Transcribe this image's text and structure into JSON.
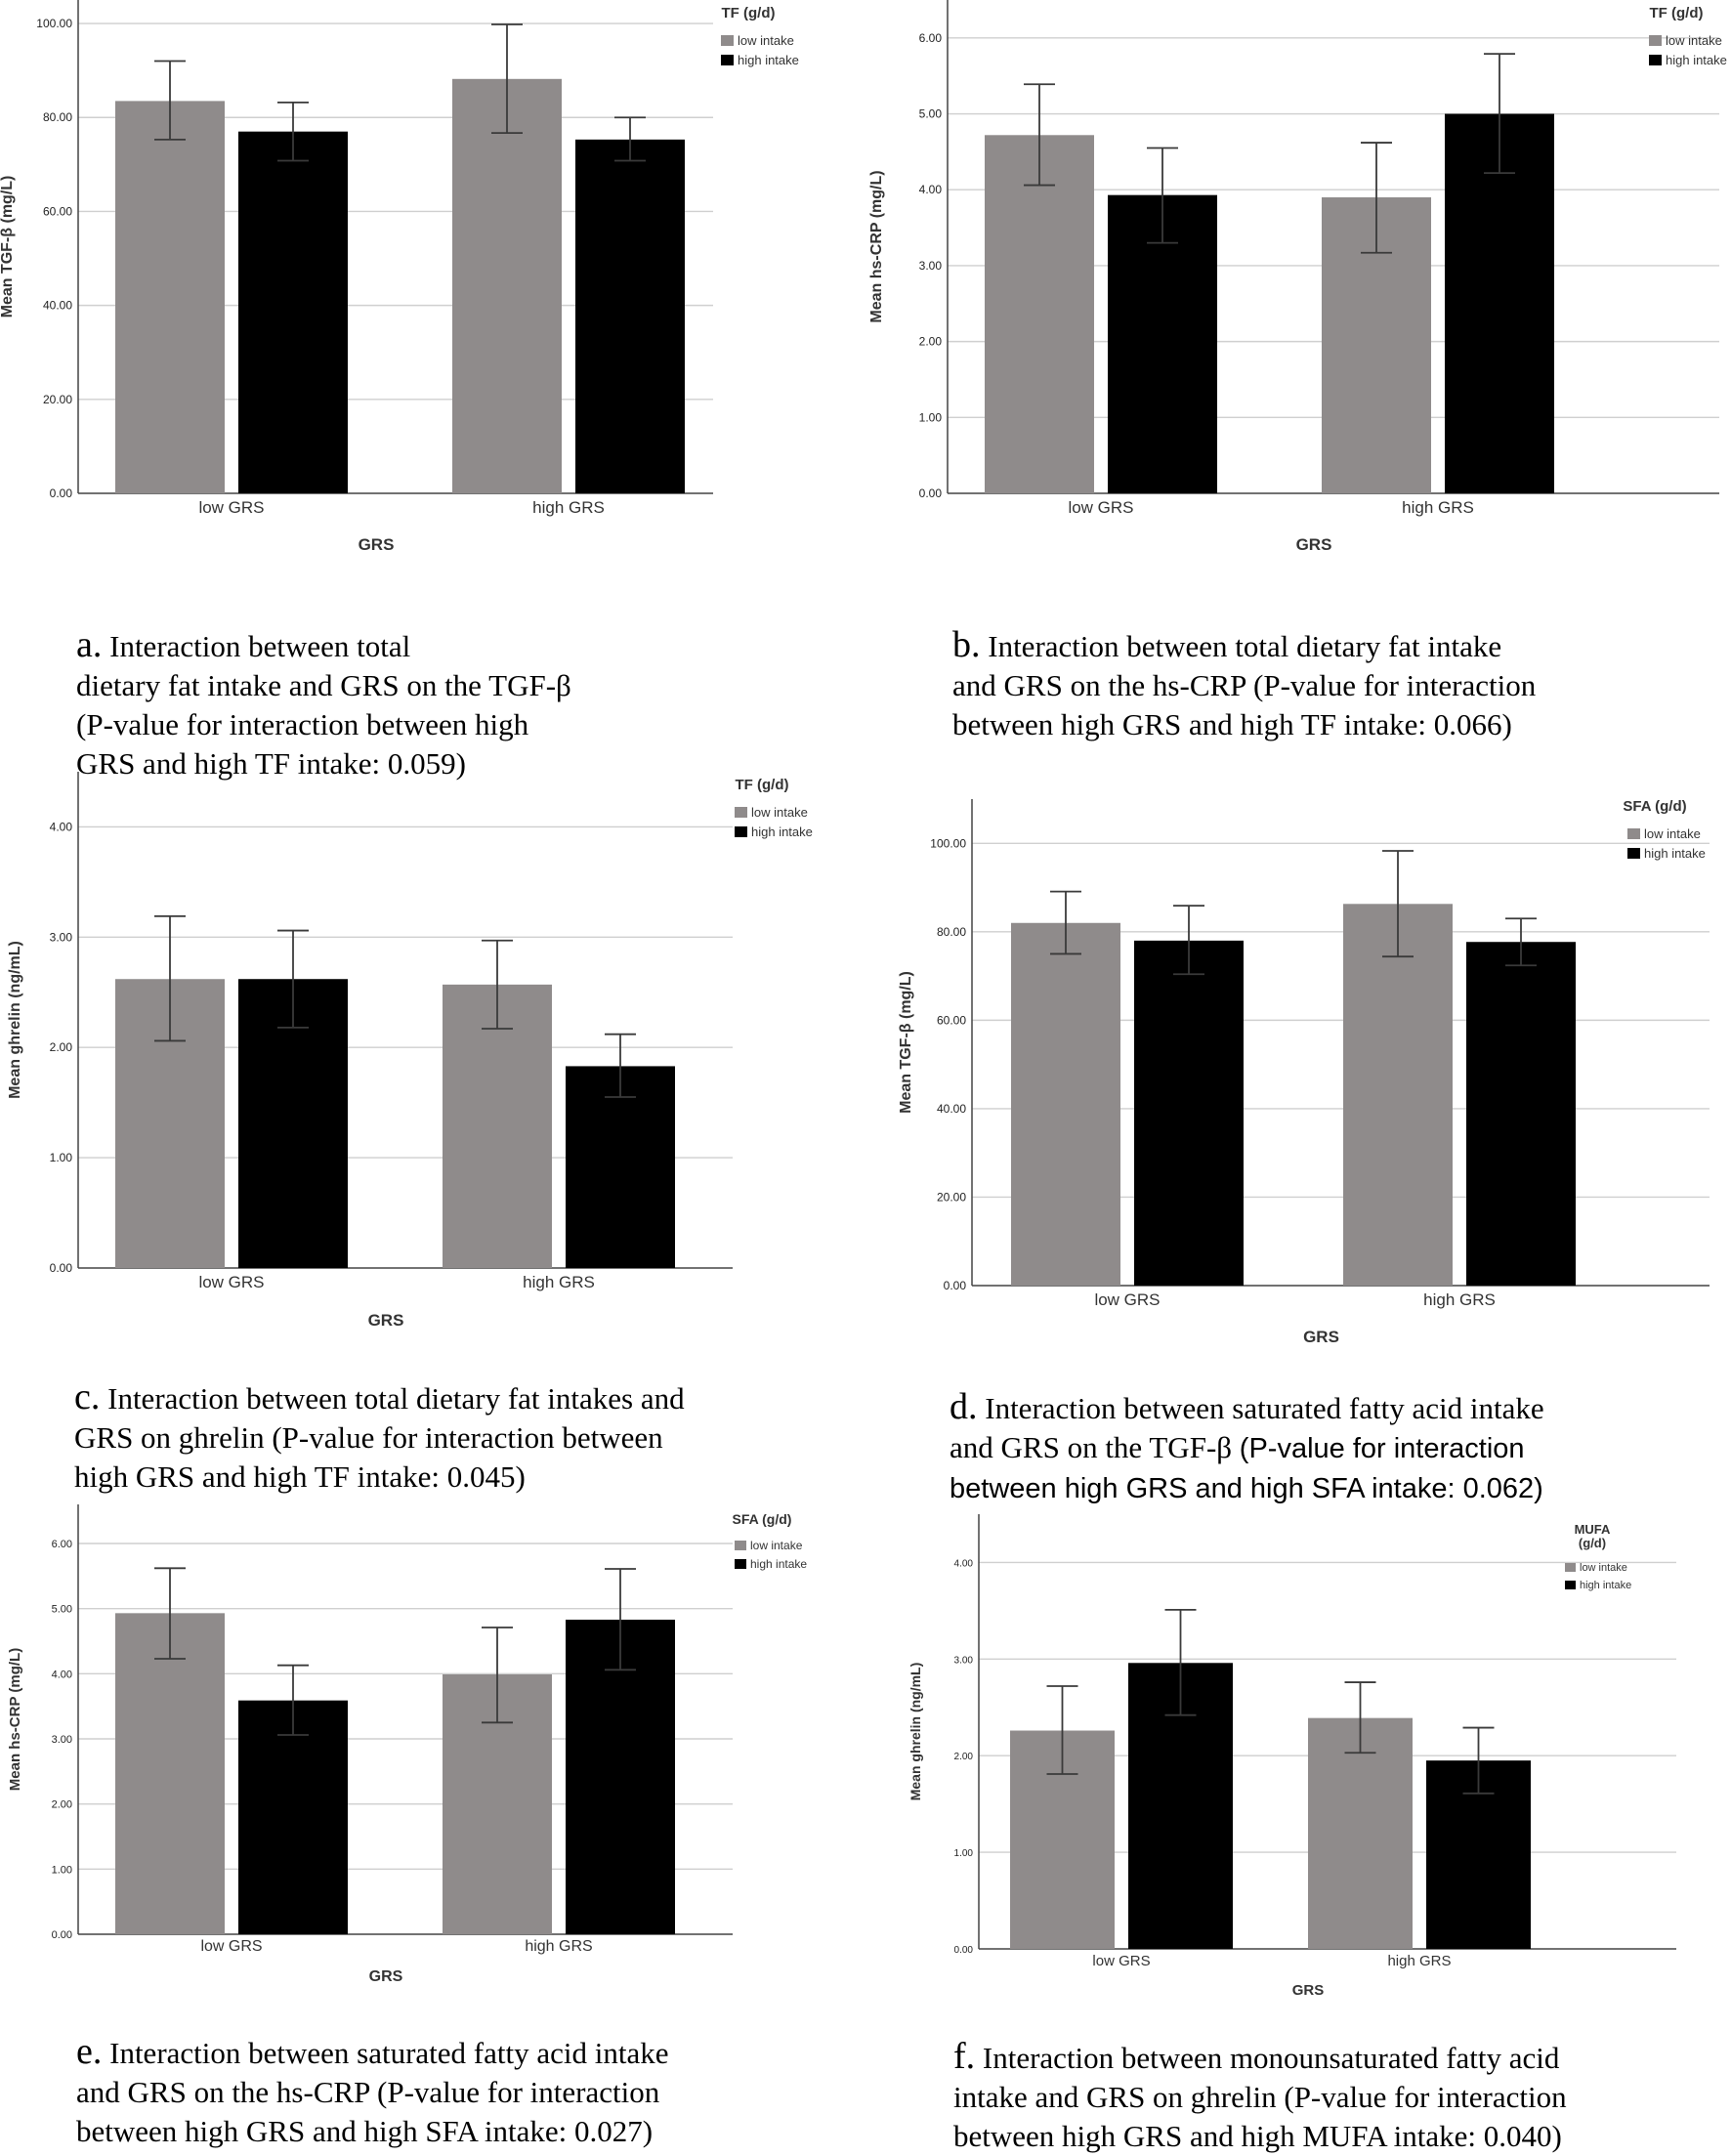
{
  "colors": {
    "low": "#8f8b8b",
    "high": "#000000",
    "grid": "#cfcfcf",
    "axis": "#444444",
    "text": "#222222"
  },
  "chart_data": [
    {
      "id": "a",
      "type": "bar",
      "categories": [
        "low GRS",
        "high GRS"
      ],
      "xlabel": "GRS",
      "ylabel": "Mean TGF-β (mg/L)",
      "ylim": [
        0,
        105
      ],
      "yticks": [
        0,
        20,
        40,
        60,
        80,
        100
      ],
      "ytick_labels": [
        "0.00",
        "20.00",
        "40.00",
        "60.00",
        "80.00",
        "100.00"
      ],
      "legend_title": [
        "TF (g/d)"
      ],
      "series": [
        {
          "name": "low intake",
          "values": [
            83.5,
            88.2
          ],
          "error_low": [
            75.3,
            76.7
          ],
          "error_high": [
            92.0,
            99.8
          ]
        },
        {
          "name": "high intake",
          "values": [
            77.0,
            75.3
          ],
          "error_low": [
            70.8,
            70.8
          ],
          "error_high": [
            83.2,
            80.0
          ]
        }
      ],
      "grid": true,
      "legend_position": "top-right"
    },
    {
      "id": "b",
      "type": "bar",
      "categories": [
        "low GRS",
        "high GRS"
      ],
      "xlabel": "GRS",
      "ylabel": "Mean hs-CRP (mg/L)",
      "ylim": [
        0,
        6.5
      ],
      "yticks": [
        0,
        1,
        2,
        3,
        4,
        5,
        6
      ],
      "ytick_labels": [
        "0.00",
        "1.00",
        "2.00",
        "3.00",
        "4.00",
        "5.00",
        "6.00"
      ],
      "legend_title": [
        "TF (g/d)"
      ],
      "series": [
        {
          "name": "low intake",
          "values": [
            4.72,
            3.9
          ],
          "error_low": [
            4.06,
            3.17
          ],
          "error_high": [
            5.39,
            4.62
          ]
        },
        {
          "name": "high intake",
          "values": [
            3.93,
            5.0
          ],
          "error_low": [
            3.3,
            4.22
          ],
          "error_high": [
            4.55,
            5.79
          ]
        }
      ],
      "grid": true,
      "legend_position": "top-right"
    },
    {
      "id": "c",
      "type": "bar",
      "categories": [
        "low GRS",
        "high GRS"
      ],
      "xlabel": "GRS",
      "ylabel": "Mean ghrelin (ng/mL)",
      "ylim": [
        0,
        4.5
      ],
      "yticks": [
        0,
        1,
        2,
        3,
        4
      ],
      "ytick_labels": [
        "0.00",
        "1.00",
        "2.00",
        "3.00",
        "4.00"
      ],
      "legend_title": [
        "TF (g/d)"
      ],
      "series": [
        {
          "name": "low intake",
          "values": [
            2.62,
            2.57
          ],
          "error_low": [
            2.06,
            2.17
          ],
          "error_high": [
            3.19,
            2.97
          ]
        },
        {
          "name": "high intake",
          "values": [
            2.62,
            1.83
          ],
          "error_low": [
            2.18,
            1.55
          ],
          "error_high": [
            3.06,
            2.12
          ]
        }
      ],
      "grid": true,
      "legend_position": "top-right"
    },
    {
      "id": "d",
      "type": "bar",
      "categories": [
        "low GRS",
        "high GRS"
      ],
      "xlabel": "GRS",
      "ylabel": "Mean TGF-β (mg/L)",
      "ylim": [
        0,
        110
      ],
      "yticks": [
        0,
        20,
        40,
        60,
        80,
        100
      ],
      "ytick_labels": [
        "0.00",
        "20.00",
        "40.00",
        "60.00",
        "80.00",
        "100.00"
      ],
      "legend_title": [
        "SFA (g/d)"
      ],
      "series": [
        {
          "name": "low intake",
          "values": [
            82.0,
            86.3
          ],
          "error_low": [
            75.0,
            74.4
          ],
          "error_high": [
            89.1,
            98.3
          ]
        },
        {
          "name": "high intake",
          "values": [
            78.0,
            77.7
          ],
          "error_low": [
            70.4,
            72.4
          ],
          "error_high": [
            85.9,
            83.0
          ]
        }
      ],
      "grid": true,
      "legend_position": "top-right"
    },
    {
      "id": "e",
      "type": "bar",
      "categories": [
        "low GRS",
        "high GRS"
      ],
      "xlabel": "GRS",
      "ylabel": "Mean hs-CRP (mg/L)",
      "ylim": [
        0,
        6.6
      ],
      "yticks": [
        0,
        1,
        2,
        3,
        4,
        5,
        6
      ],
      "ytick_labels": [
        "0.00",
        "1.00",
        "2.00",
        "3.00",
        "4.00",
        "5.00",
        "6.00"
      ],
      "legend_title": [
        "SFA (g/d)"
      ],
      "series": [
        {
          "name": "low intake",
          "values": [
            4.93,
            3.99
          ],
          "error_low": [
            4.23,
            3.25
          ],
          "error_high": [
            5.62,
            4.71
          ]
        },
        {
          "name": "high intake",
          "values": [
            3.59,
            4.83
          ],
          "error_low": [
            3.06,
            4.06
          ],
          "error_high": [
            4.13,
            5.61
          ]
        }
      ],
      "grid": true,
      "legend_position": "top-right"
    },
    {
      "id": "f",
      "type": "bar",
      "categories": [
        "low GRS",
        "high GRS"
      ],
      "xlabel": "GRS",
      "ylabel": "Mean ghrelin (ng/mL)",
      "ylim": [
        0,
        4.5
      ],
      "yticks": [
        0,
        1,
        2,
        3,
        4
      ],
      "ytick_labels": [
        "0.00",
        "1.00",
        "2.00",
        "3.00",
        "4.00"
      ],
      "legend_title": [
        "MUFA",
        "(g/d)"
      ],
      "series": [
        {
          "name": "low intake",
          "values": [
            2.26,
            2.39
          ],
          "error_low": [
            1.81,
            2.03
          ],
          "error_high": [
            2.72,
            2.76
          ]
        },
        {
          "name": "high intake",
          "values": [
            2.96,
            1.95
          ],
          "error_low": [
            2.42,
            1.61
          ],
          "error_high": [
            3.51,
            2.29
          ]
        }
      ],
      "grid": true,
      "legend_position": "top-right"
    }
  ],
  "captions": {
    "a": {
      "letter": "a.",
      "line1": "  Interaction   between   total",
      "rest": "dietary fat intake and GRS on the TGF-β\n(P-value   for interaction   between   high\nGRS and high TF intake: 0.059)"
    },
    "b": {
      "letter": "b.",
      "line1": " Interaction between total dietary fat intake",
      "rest": "and GRS on the hs-CRP (P-value for interaction\nbetween high GRS and   high TF intake: 0.066)"
    },
    "c": {
      "letter": "c.",
      "line1": " Interaction between total dietary fat intakes and",
      "rest": "GRS on ghrelin (P-value for interaction between\nhigh GRS and high TF intake: 0.045)"
    },
    "d": {
      "letter": "d.",
      "line1": "  Interaction  between  saturated  fatty  acid  intake",
      "line2": "and GRS on the TGF-β ",
      "line2b": "(P-value for interaction",
      "line3": "between high GRS and high SFA intake: 0.062)"
    },
    "e": {
      "letter": "e.",
      "line1": "  Interaction between  saturated  fatty acid intake",
      "rest": "and GRS on the hs-CRP (P-value for interaction\nbetween high GRS and high SFA intake: 0.027)"
    },
    "f": {
      "letter": "f.",
      "line1": " Interaction between monounsaturated fatty acid",
      "rest": "intake and GRS on ghrelin (P-value for interaction\nbetween high GRS and high MUFA intake: 0.040)"
    }
  }
}
